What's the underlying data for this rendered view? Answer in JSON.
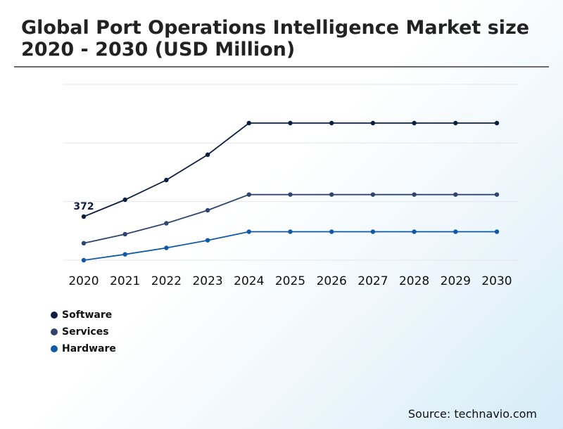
{
  "title": "Global Port Operations Intelligence Market size 2020 - 2030 (USD Million)",
  "source": "Source: technavio.com",
  "chart_data": {
    "type": "line",
    "title": "Global Port Operations Intelligence Market size 2020 - 2030 (USD Million)",
    "xlabel": "",
    "ylabel": "",
    "categories": [
      "2020",
      "2021",
      "2022",
      "2023",
      "2024",
      "2025",
      "2026",
      "2027",
      "2028",
      "2029",
      "2030"
    ],
    "ylim": [
      0,
      1500
    ],
    "grid": true,
    "legend_position": "bottom-left",
    "data_labels": [
      {
        "series": "Software",
        "category": "2020",
        "text": "372"
      }
    ],
    "series": [
      {
        "name": "Software",
        "color": "#0d1f40",
        "values": [
          372,
          516,
          684,
          900,
          1170,
          1170,
          1170,
          1170,
          1170,
          1170,
          1170
        ]
      },
      {
        "name": "Services",
        "color": "#2f4570",
        "values": [
          145,
          222,
          315,
          426,
          560,
          560,
          560,
          560,
          560,
          560,
          560
        ]
      },
      {
        "name": "Hardware",
        "color": "#0f5aa8",
        "values": [
          0,
          50,
          105,
          170,
          243,
          243,
          243,
          243,
          243,
          243,
          243
        ]
      }
    ]
  }
}
